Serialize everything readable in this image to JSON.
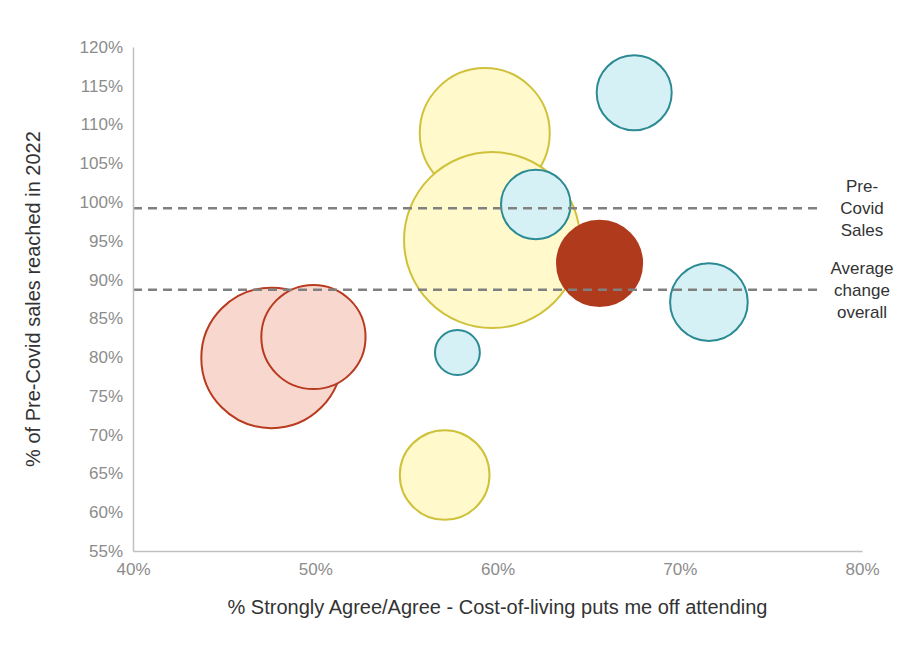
{
  "chart_data": {
    "type": "scatter",
    "x_label": "% Strongly Agree/Agree - Cost-of-living puts me off attending",
    "y_label": "% of Pre-Covid sales reached in 2022",
    "x": [
      59.3,
      59.7,
      57.1,
      62.1,
      67.5,
      71.6,
      57.8,
      65.6,
      47.6,
      49.9
    ],
    "values": [
      108.9,
      95.1,
      64.8,
      99.7,
      114.1,
      87.1,
      80.6,
      92.1,
      79.9,
      82.6
    ],
    "sizes": [
      42,
      77,
      20,
      12,
      14,
      15,
      5,
      18,
      49,
      27
    ],
    "colors": [
      "#FFF9CC",
      "#FFF9CC",
      "#FFF9CC",
      "#D5F1F5",
      "#D5F1F5",
      "#D5F1F5",
      "#D5F1F5",
      "#B03A1C",
      "#F8D7CF",
      "#F8D7CF"
    ],
    "xlim": [
      40,
      80
    ],
    "ylim": [
      55,
      120
    ],
    "xticks": [
      {
        "value": 40,
        "label": "40%"
      },
      {
        "value": 50,
        "label": "50%"
      },
      {
        "value": 60,
        "label": "60%"
      },
      {
        "value": 70,
        "label": "70%"
      },
      {
        "value": 80,
        "label": "80%"
      }
    ],
    "yticks": [
      {
        "value": 55,
        "label": "55%"
      },
      {
        "value": 60,
        "label": "60%"
      },
      {
        "value": 65,
        "label": "65%"
      },
      {
        "value": 70,
        "label": "70%"
      },
      {
        "value": 75,
        "label": "75%"
      },
      {
        "value": 80,
        "label": "80%"
      },
      {
        "value": 85,
        "label": "85%"
      },
      {
        "value": 90,
        "label": "90%"
      },
      {
        "value": 95,
        "label": "95%"
      },
      {
        "value": 100,
        "label": "100%"
      },
      {
        "value": 105,
        "label": "105%"
      },
      {
        "value": 110,
        "label": "110%"
      },
      {
        "value": 115,
        "label": "115%"
      },
      {
        "value": 120,
        "label": "120%"
      }
    ],
    "reference_lines": [
      {
        "value": 99.2,
        "label": [
          "Pre-",
          "Covid",
          "Sales"
        ]
      },
      {
        "value": 88.7,
        "label": [
          "Average",
          "change",
          "overall"
        ]
      }
    ],
    "grid": false
  }
}
